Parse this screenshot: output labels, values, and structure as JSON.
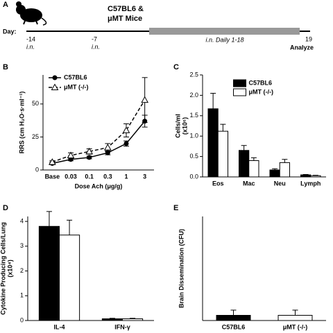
{
  "panel_a": {
    "label": "A",
    "title_lines": [
      "C57BL6 &",
      "μMT Mice"
    ],
    "day_label": "Day:",
    "events": [
      {
        "day": "-14",
        "note": "i.n."
      },
      {
        "day": "-7",
        "note": "i.n."
      },
      {
        "day": "19",
        "note": "Analyze"
      }
    ],
    "daily": "i.n. Daily 1-18"
  },
  "chart_data": [
    {
      "type": "line",
      "panel_label": "B",
      "xlabel": "Dose Ach (μg/g)",
      "ylabel": [
        "RRS (cm H₂O·s·ml⁻¹)"
      ],
      "categories": [
        "Base",
        "0.03",
        "0.1",
        "0.3",
        "1",
        "3"
      ],
      "series": [
        {
          "name": "C57BL6",
          "color": "#000000",
          "marker": "circle",
          "linestyle": "solid",
          "values": [
            5,
            8,
            9.5,
            13,
            20,
            37
          ],
          "errors": [
            1,
            1,
            1,
            1.5,
            2,
            4.5
          ]
        },
        {
          "name": "μMT (-/-)",
          "color": "#000000",
          "marker": "triangle",
          "linestyle": "dashed",
          "values": [
            6,
            11,
            14,
            17,
            30,
            53
          ],
          "errors": [
            1,
            2,
            2,
            3,
            5,
            17
          ]
        }
      ],
      "ylim": [
        0,
        72
      ],
      "yticks": [
        0,
        25,
        50
      ],
      "legend": "top-left"
    },
    {
      "type": "bar",
      "panel_label": "C",
      "xlabel": null,
      "ylabel": [
        "Cells/ml",
        "(x10⁶)"
      ],
      "categories": [
        "Eos",
        "Mac",
        "Neu",
        "Lymph"
      ],
      "series": [
        {
          "name": "C57BL6",
          "color": "#000000",
          "values": [
            1.67,
            0.65,
            0.17,
            0.05
          ],
          "errors": [
            0.38,
            0.12,
            0.03,
            0.01
          ]
        },
        {
          "name": "μMT (-/-)",
          "color": "#ffffff",
          "values": [
            1.12,
            0.4,
            0.35,
            0.03
          ],
          "errors": [
            0.17,
            0.07,
            0.08,
            0.01
          ]
        }
      ],
      "ylim": [
        0,
        2.5
      ],
      "yticks": [
        {
          "value": 0,
          "label": "0.0"
        },
        0.5,
        {
          "value": 1,
          "label": "1.0"
        },
        1.5,
        {
          "value": 2,
          "label": "2.0"
        },
        2.5
      ],
      "legend": "top-right"
    },
    {
      "type": "bar",
      "panel_label": "D",
      "xlabel": null,
      "ylabel": [
        "Cytokine Producing Cells/Lung",
        "(x10⁴)"
      ],
      "categories": [
        "IL-4",
        "IFN-γ"
      ],
      "series": [
        {
          "color": "#000000",
          "values": [
            3.8,
            0.07
          ],
          "errors": [
            0.6,
            0.02
          ]
        },
        {
          "color": "#ffffff",
          "values": [
            3.45,
            0.07
          ],
          "errors": [
            0.6,
            0.02
          ]
        }
      ],
      "ylim": [
        0,
        4.2
      ],
      "yticks": [
        0,
        1,
        2,
        3,
        4
      ]
    },
    {
      "type": "bar",
      "panel_label": "E",
      "xlabel": null,
      "ylabel": [
        "Brain Dissemination (CFU)"
      ],
      "categories": [
        "C57BL6",
        "μMT (-/-)"
      ],
      "single": true,
      "series": [
        {
          "color": "#000000",
          "values": [
            0.2,
            null
          ],
          "errors": [
            0.2,
            null
          ]
        },
        {
          "color": "#ffffff",
          "values": [
            null,
            0.2
          ],
          "errors": [
            null,
            0.2
          ]
        }
      ],
      "ylim": [
        0,
        4
      ],
      "yticks": []
    }
  ]
}
